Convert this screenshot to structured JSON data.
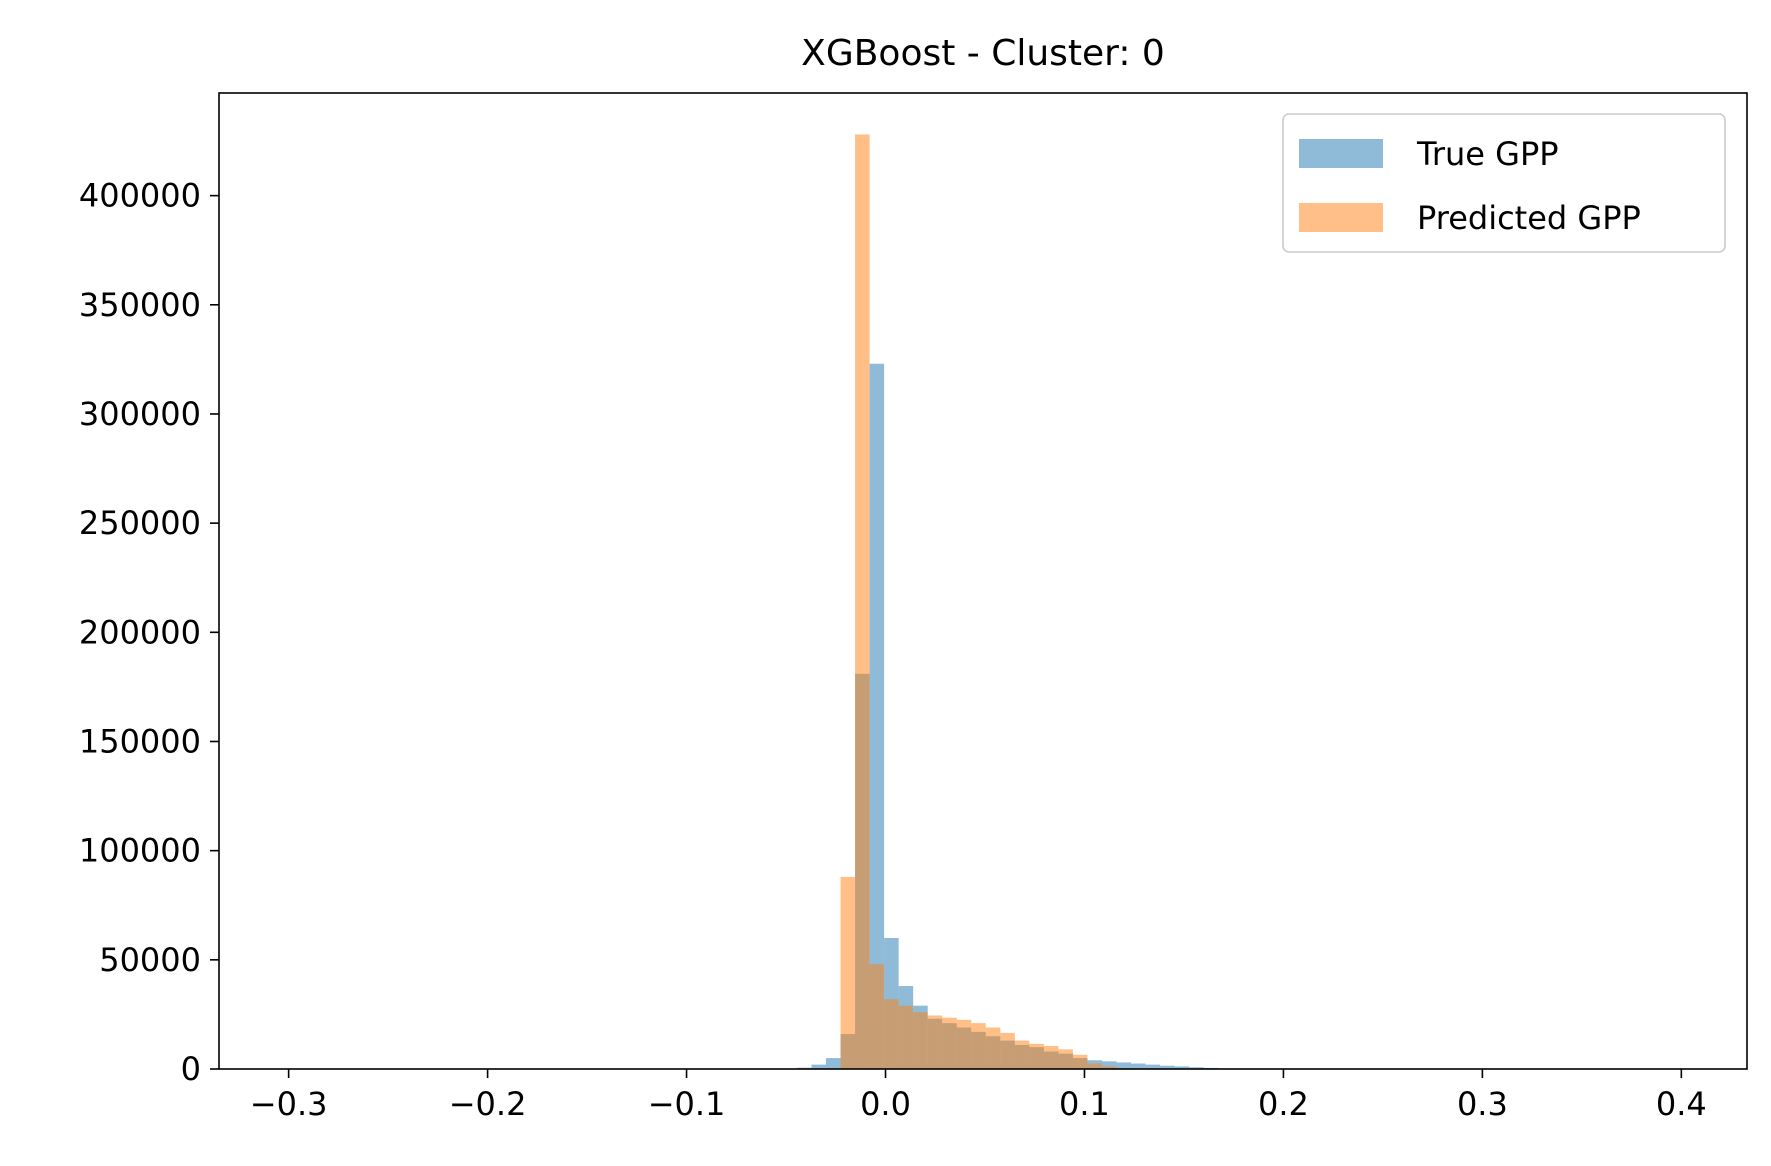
{
  "chart_data": {
    "type": "bar",
    "title": "XGBoost - Cluster: 0",
    "xlabel": "",
    "ylabel": "",
    "xlim": [
      -0.335,
      0.433
    ],
    "ylim": [
      0,
      447000
    ],
    "x_ticks": [
      -0.3,
      -0.2,
      -0.1,
      0.0,
      0.1,
      0.2,
      0.3,
      0.4
    ],
    "x_tick_labels": [
      "−0.3",
      "−0.2",
      "−0.1",
      "0.0",
      "0.1",
      "0.2",
      "0.3",
      "0.4"
    ],
    "y_ticks": [
      0,
      50000,
      100000,
      150000,
      200000,
      250000,
      300000,
      350000,
      400000
    ],
    "y_tick_labels": [
      "0",
      "50000",
      "100000",
      "150000",
      "200000",
      "250000",
      "300000",
      "350000",
      "400000"
    ],
    "grid": false,
    "legend_position": "top-right",
    "bin_width": 0.0073,
    "series": [
      {
        "name": "True GPP",
        "color": "#1f77b4",
        "opacity": 0.5,
        "bins": [
          {
            "x0": -0.0445,
            "value": 600
          },
          {
            "x0": -0.0372,
            "value": 2000
          },
          {
            "x0": -0.0299,
            "value": 5000
          },
          {
            "x0": -0.0226,
            "value": 16000
          },
          {
            "x0": -0.0153,
            "value": 181000
          },
          {
            "x0": -0.008,
            "value": 323000
          },
          {
            "x0": -0.0007,
            "value": 60000
          },
          {
            "x0": 0.0066,
            "value": 38000
          },
          {
            "x0": 0.0139,
            "value": 29000
          },
          {
            "x0": 0.0212,
            "value": 23000
          },
          {
            "x0": 0.0285,
            "value": 21000
          },
          {
            "x0": 0.0358,
            "value": 19000
          },
          {
            "x0": 0.0431,
            "value": 17000
          },
          {
            "x0": 0.0504,
            "value": 15000
          },
          {
            "x0": 0.0577,
            "value": 13000
          },
          {
            "x0": 0.065,
            "value": 11000
          },
          {
            "x0": 0.0723,
            "value": 10000
          },
          {
            "x0": 0.0796,
            "value": 8000
          },
          {
            "x0": 0.0869,
            "value": 7000
          },
          {
            "x0": 0.0942,
            "value": 5000
          },
          {
            "x0": 0.1015,
            "value": 4000
          },
          {
            "x0": 0.1088,
            "value": 3500
          },
          {
            "x0": 0.1161,
            "value": 3000
          },
          {
            "x0": 0.1234,
            "value": 2500
          },
          {
            "x0": 0.1307,
            "value": 2000
          },
          {
            "x0": 0.138,
            "value": 1500
          },
          {
            "x0": 0.1453,
            "value": 1200
          },
          {
            "x0": 0.1526,
            "value": 800
          },
          {
            "x0": 0.1599,
            "value": 500
          }
        ]
      },
      {
        "name": "Predicted GPP",
        "color": "#ff7f0e",
        "opacity": 0.5,
        "bins": [
          {
            "x0": -0.0226,
            "value": 88000
          },
          {
            "x0": -0.0153,
            "value": 428000
          },
          {
            "x0": -0.008,
            "value": 48000
          },
          {
            "x0": -0.0007,
            "value": 32000
          },
          {
            "x0": 0.0066,
            "value": 29000
          },
          {
            "x0": 0.0139,
            "value": 26000
          },
          {
            "x0": 0.0212,
            "value": 24500
          },
          {
            "x0": 0.0285,
            "value": 23500
          },
          {
            "x0": 0.0358,
            "value": 22500
          },
          {
            "x0": 0.0431,
            "value": 21000
          },
          {
            "x0": 0.0504,
            "value": 19000
          },
          {
            "x0": 0.0577,
            "value": 16500
          },
          {
            "x0": 0.065,
            "value": 13000
          },
          {
            "x0": 0.0723,
            "value": 11500
          },
          {
            "x0": 0.0796,
            "value": 10500
          },
          {
            "x0": 0.0869,
            "value": 9000
          },
          {
            "x0": 0.0942,
            "value": 6500
          },
          {
            "x0": 0.1015,
            "value": 2500
          },
          {
            "x0": 0.1088,
            "value": 1200
          },
          {
            "x0": 0.1161,
            "value": 400
          }
        ]
      }
    ]
  }
}
